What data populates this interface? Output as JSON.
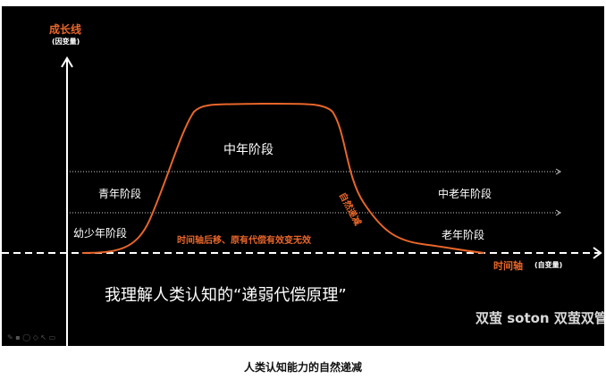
{
  "y_axis": {
    "title": "成长线",
    "subtitle": "(因变量)"
  },
  "x_axis": {
    "title": "时间轴",
    "subtitle": "(自变量)"
  },
  "stages": {
    "child": "幼少年阶段",
    "youth": "青年阶段",
    "middle": "中年阶段",
    "late_middle": "中老年阶段",
    "old": "老年阶段"
  },
  "annotations": {
    "decline": "自然递减",
    "shift": "时间轴后移、原有代偿有效变无效"
  },
  "headline": "我理解人类认知的“递弱代偿原理”",
  "watermark": "双萤 soton 双萤双管",
  "caption": "人类认知能力的自然递减",
  "colors": {
    "background": "#000000",
    "accent": "#e8662a",
    "text": "#ffffff"
  }
}
